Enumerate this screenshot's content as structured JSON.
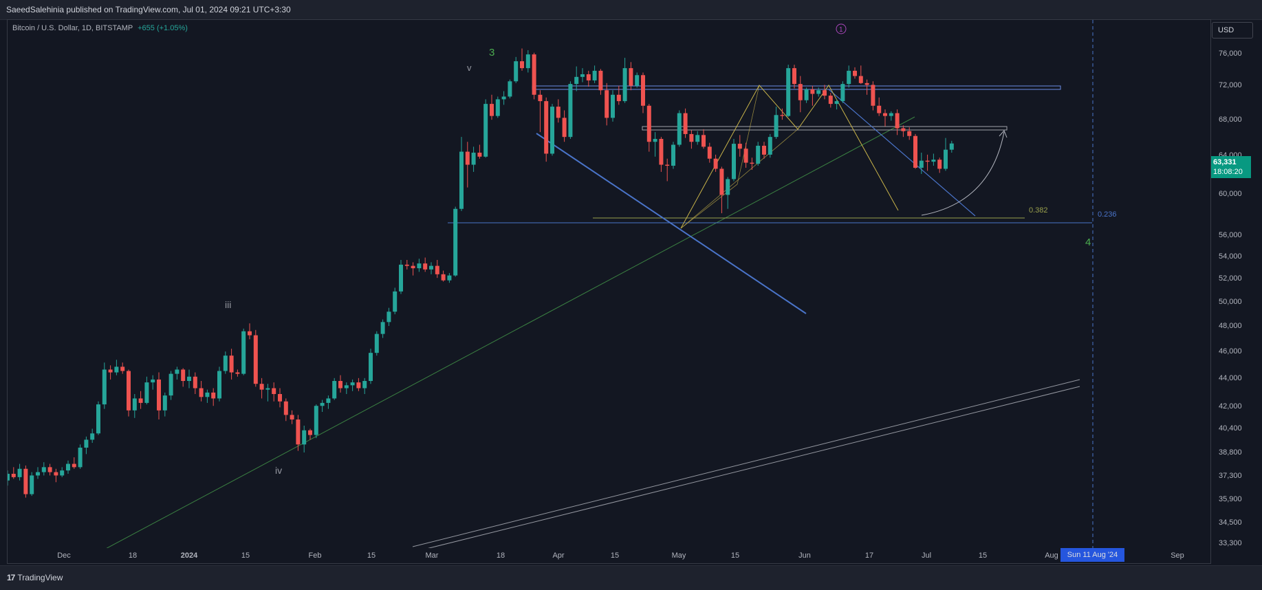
{
  "header": {
    "publisher_line": "SaeedSalehinia published on TradingView.com, Jul 01, 2024 09:21 UTC+3:30"
  },
  "legend": {
    "symbol": "Bitcoin / U.S. Dollar, 1D, BITSTAMP",
    "change": "+655 (+1.05%)"
  },
  "currency_button": "USD",
  "last_price": {
    "value": "63,331",
    "countdown": "18:08:20"
  },
  "crosshair_date": "Sun 11 Aug '24",
  "footer": {
    "brand": "TradingView"
  },
  "colors": {
    "background": "#131722",
    "up": "#26a69a",
    "down": "#ef5350",
    "trendline_blue": "#4a74c9",
    "fib_olive": "#9aa04c",
    "wave_green": "#4caf50",
    "pattern_yellow": "#c9b44a"
  },
  "chart_data": {
    "type": "candlestick",
    "symbol": "BTCUSD",
    "exchange": "BITSTAMP",
    "interval": "1D",
    "x_tick_labels": [
      "Dec",
      "18",
      "2024",
      "15",
      "Feb",
      "15",
      "Mar",
      "18",
      "Apr",
      "15",
      "May",
      "15",
      "Jun",
      "17",
      "Jul",
      "15",
      "Aug",
      "Sep"
    ],
    "y_tick_labels": [
      "76,000",
      "72,000",
      "68,000",
      "64,000",
      "60,000",
      "56,000",
      "54,000",
      "52,000",
      "50,000",
      "48,000",
      "46,000",
      "44,000",
      "42,000",
      "40,400",
      "38,800",
      "37,300",
      "35,900",
      "34,500",
      "33,300"
    ],
    "y_scale": "log",
    "ylim": [
      33000,
      78000
    ],
    "grid": false,
    "annotations": {
      "wave_labels": [
        "3",
        "v",
        "iii",
        "iv",
        "4"
      ],
      "circled_label": "1",
      "fib_levels": [
        "0.382",
        "0.236"
      ]
    },
    "fib_level_values": [
      57600,
      57000
    ],
    "horizontal_zones": [
      {
        "from": 71200,
        "to": 71600
      },
      {
        "from": 66900,
        "to": 67300
      }
    ],
    "candles": [
      [
        36800,
        37400,
        36500,
        37200
      ],
      [
        37200,
        37600,
        36900,
        37000
      ],
      [
        37000,
        37800,
        36800,
        37500
      ],
      [
        37500,
        37700,
        35800,
        36000
      ],
      [
        36000,
        37300,
        35900,
        37100
      ],
      [
        37100,
        37600,
        36900,
        37300
      ],
      [
        37300,
        37900,
        37100,
        37600
      ],
      [
        37600,
        37800,
        37100,
        37300
      ],
      [
        37300,
        37500,
        36700,
        37100
      ],
      [
        37100,
        37600,
        37000,
        37400
      ],
      [
        37400,
        38000,
        37200,
        37800
      ],
      [
        37800,
        38200,
        37500,
        37600
      ],
      [
        37600,
        39000,
        37500,
        38800
      ],
      [
        38800,
        39500,
        38400,
        39300
      ],
      [
        39300,
        40000,
        39100,
        39700
      ],
      [
        39700,
        41800,
        39600,
        41600
      ],
      [
        41600,
        44500,
        41300,
        44000
      ],
      [
        44000,
        44300,
        43300,
        43800
      ],
      [
        43800,
        44700,
        43600,
        44200
      ],
      [
        44200,
        44500,
        43700,
        43900
      ],
      [
        43900,
        44000,
        40800,
        41200
      ],
      [
        41200,
        42300,
        40700,
        42000
      ],
      [
        42000,
        42500,
        41300,
        41700
      ],
      [
        41700,
        43500,
        41600,
        43100
      ],
      [
        43100,
        43600,
        42600,
        43300
      ],
      [
        43300,
        43800,
        40600,
        41200
      ],
      [
        41200,
        42400,
        40800,
        42200
      ],
      [
        42200,
        43900,
        41900,
        43700
      ],
      [
        43700,
        44200,
        43300,
        44000
      ],
      [
        44000,
        44100,
        42800,
        43200
      ],
      [
        43200,
        44000,
        42700,
        43500
      ],
      [
        43500,
        43800,
        42300,
        42700
      ],
      [
        42700,
        43200,
        41800,
        42100
      ],
      [
        42100,
        42600,
        41700,
        42400
      ],
      [
        42400,
        42700,
        41500,
        42000
      ],
      [
        42000,
        44200,
        41800,
        43900
      ],
      [
        43900,
        45300,
        43700,
        45000
      ],
      [
        45000,
        45500,
        43300,
        43800
      ],
      [
        43800,
        44000,
        43500,
        43700
      ],
      [
        43700,
        47000,
        43600,
        46800
      ],
      [
        46800,
        47400,
        46200,
        46500
      ],
      [
        46500,
        46900,
        42800,
        43000
      ],
      [
        43000,
        43400,
        42000,
        42600
      ],
      [
        42600,
        43000,
        41800,
        42700
      ],
      [
        42700,
        43100,
        41800,
        42300
      ],
      [
        42300,
        42700,
        41400,
        41800
      ],
      [
        41800,
        42000,
        40500,
        40900
      ],
      [
        40900,
        41200,
        40300,
        40600
      ],
      [
        40600,
        40900,
        38600,
        39000
      ],
      [
        39000,
        40200,
        38500,
        39900
      ],
      [
        39900,
        40000,
        39300,
        39600
      ],
      [
        39600,
        41600,
        39400,
        41500
      ],
      [
        41500,
        41900,
        41100,
        41700
      ],
      [
        41700,
        42200,
        41300,
        42000
      ],
      [
        42000,
        43400,
        41900,
        43200
      ],
      [
        43200,
        43600,
        42400,
        42700
      ],
      [
        42700,
        43100,
        42300,
        42900
      ],
      [
        42900,
        43300,
        42500,
        43100
      ],
      [
        43100,
        43400,
        42500,
        42700
      ],
      [
        42700,
        43400,
        42300,
        43200
      ],
      [
        43200,
        45500,
        43000,
        45200
      ],
      [
        45200,
        46800,
        45000,
        46600
      ],
      [
        46600,
        47700,
        46300,
        47500
      ],
      [
        47500,
        48600,
        47200,
        48300
      ],
      [
        48300,
        50200,
        48100,
        49900
      ],
      [
        49900,
        52500,
        49700,
        52100
      ],
      [
        52100,
        52500,
        51700,
        52000
      ],
      [
        52000,
        52300,
        51200,
        51800
      ],
      [
        51800,
        52600,
        51500,
        52200
      ],
      [
        52200,
        52700,
        51500,
        51700
      ],
      [
        51700,
        52300,
        51300,
        52000
      ],
      [
        52000,
        52500,
        51000,
        51300
      ],
      [
        51300,
        51600,
        50700,
        50800
      ],
      [
        50800,
        51400,
        50600,
        51200
      ],
      [
        51200,
        57200,
        51100,
        57000
      ],
      [
        57000,
        64000,
        56800,
        62500
      ],
      [
        62500,
        63500,
        59000,
        61200
      ],
      [
        61200,
        63000,
        60500,
        62400
      ],
      [
        62400,
        63200,
        61800,
        62000
      ],
      [
        62000,
        68000,
        61900,
        67500
      ],
      [
        67500,
        68500,
        65800,
        66200
      ],
      [
        66200,
        68300,
        66000,
        68000
      ],
      [
        68000,
        68900,
        67400,
        68300
      ],
      [
        68300,
        70200,
        68100,
        70000
      ],
      [
        70000,
        72800,
        69800,
        72300
      ],
      [
        72300,
        73800,
        71200,
        71500
      ],
      [
        71500,
        73600,
        71000,
        73100
      ],
      [
        73100,
        73300,
        68000,
        68500
      ],
      [
        68500,
        69000,
        64500,
        67800
      ],
      [
        67800,
        68200,
        61500,
        62300
      ],
      [
        62300,
        67500,
        62100,
        67200
      ],
      [
        67200,
        68000,
        65500,
        66000
      ],
      [
        66000,
        66800,
        63500,
        64000
      ],
      [
        64000,
        70000,
        63800,
        69700
      ],
      [
        69700,
        71700,
        68900,
        70500
      ],
      [
        70500,
        71500,
        69900,
        70800
      ],
      [
        70800,
        71200,
        69400,
        70100
      ],
      [
        70100,
        71800,
        69800,
        71200
      ],
      [
        71200,
        71400,
        68500,
        69000
      ],
      [
        69000,
        69800,
        65200,
        66000
      ],
      [
        66000,
        69000,
        65600,
        68500
      ],
      [
        68500,
        69500,
        67400,
        67800
      ],
      [
        67800,
        72700,
        67600,
        71500
      ],
      [
        71500,
        72200,
        69000,
        69500
      ],
      [
        69500,
        71000,
        69300,
        70700
      ],
      [
        70700,
        71000,
        66500,
        67300
      ],
      [
        67300,
        67500,
        62500,
        63500
      ],
      [
        63500,
        64500,
        62000,
        63800
      ],
      [
        63800,
        64000,
        60500,
        61200
      ],
      [
        61200,
        61800,
        59600,
        61100
      ],
      [
        61100,
        63500,
        60800,
        63200
      ],
      [
        63200,
        66800,
        63000,
        66500
      ],
      [
        66500,
        67000,
        63900,
        64300
      ],
      [
        64300,
        64700,
        62800,
        63500
      ],
      [
        63500,
        64600,
        63200,
        64200
      ],
      [
        64200,
        64800,
        62800,
        63000
      ],
      [
        63000,
        63400,
        61400,
        61800
      ],
      [
        61800,
        62200,
        60500,
        60800
      ],
      [
        60800,
        61000,
        56600,
        58300
      ],
      [
        58300,
        60000,
        57000,
        59800
      ],
      [
        59800,
        63800,
        59600,
        63300
      ],
      [
        63300,
        64200,
        62000,
        62800
      ],
      [
        62800,
        63400,
        60900,
        61400
      ],
      [
        61400,
        61900,
        60700,
        61300
      ],
      [
        61300,
        63500,
        61100,
        63100
      ],
      [
        63100,
        63500,
        61800,
        62200
      ],
      [
        62200,
        64300,
        61900,
        64000
      ],
      [
        64000,
        67200,
        63800,
        66300
      ],
      [
        66300,
        67000,
        65800,
        66200
      ],
      [
        66200,
        71900,
        66100,
        71500
      ],
      [
        71500,
        71900,
        69200,
        69700
      ],
      [
        69700,
        70600,
        66600,
        67900
      ],
      [
        67900,
        69300,
        67600,
        69100
      ],
      [
        69100,
        69500,
        67300,
        68600
      ],
      [
        68600,
        69300,
        68300,
        69000
      ],
      [
        69000,
        69600,
        68000,
        68400
      ],
      [
        68400,
        68700,
        67100,
        67500
      ],
      [
        67500,
        68000,
        66900,
        67800
      ],
      [
        67800,
        70000,
        67600,
        69700
      ],
      [
        69700,
        71800,
        69300,
        71200
      ],
      [
        71200,
        71600,
        70300,
        70600
      ],
      [
        70600,
        71800,
        69700,
        69800
      ],
      [
        69800,
        70200,
        68500,
        69600
      ],
      [
        69600,
        70000,
        66800,
        67300
      ],
      [
        67300,
        68200,
        66200,
        66500
      ],
      [
        66500,
        66900,
        65100,
        66200
      ],
      [
        66200,
        66700,
        65700,
        66500
      ],
      [
        66500,
        66900,
        64200,
        64900
      ],
      [
        64900,
        65200,
        64000,
        64600
      ],
      [
        64600,
        65000,
        63700,
        64100
      ],
      [
        64100,
        64300,
        60800,
        60900
      ],
      [
        60900,
        62400,
        60300,
        61600
      ],
      [
        61600,
        62200,
        60600,
        61500
      ],
      [
        61500,
        62300,
        61100,
        61700
      ],
      [
        61700,
        61900,
        60400,
        60800
      ],
      [
        60800,
        63900,
        60600,
        62700
      ],
      [
        62700,
        63600,
        62400,
        63331
      ]
    ]
  }
}
